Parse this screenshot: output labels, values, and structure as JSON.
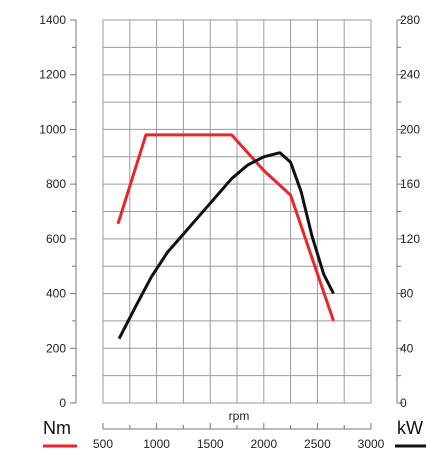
{
  "chart_data": {
    "type": "line",
    "xlabel": "rpm",
    "xlim": [
      500,
      3000
    ],
    "x_ticks": [
      "500",
      "1000",
      "1500",
      "2000",
      "2500",
      "3000"
    ],
    "left_axis": {
      "unit": "Nm",
      "ylim": [
        0,
        1400
      ],
      "ticks": [
        "0",
        "200",
        "400",
        "600",
        "800",
        "1000",
        "1200",
        "1400"
      ]
    },
    "right_axis": {
      "unit": "kW",
      "ylim": [
        0,
        280
      ],
      "ticks": [
        "0",
        "40",
        "80",
        "120",
        "160",
        "200",
        "240",
        "280"
      ]
    },
    "grid": true,
    "series": [
      {
        "axis": "left",
        "color": "#e8262b",
        "x": [
          640,
          900,
          1700,
          2000,
          2250,
          2650
        ],
        "y": [
          655,
          980,
          980,
          850,
          760,
          300
        ]
      },
      {
        "axis": "right",
        "color": "#111111",
        "x": [
          650,
          800,
          950,
          1100,
          1300,
          1500,
          1700,
          1850,
          2000,
          2150,
          2250,
          2350,
          2450,
          2560,
          2650
        ],
        "y": [
          47,
          70,
          92,
          110,
          128,
          146,
          164,
          174,
          180,
          183,
          176,
          154,
          122,
          94,
          80
        ]
      }
    ]
  }
}
